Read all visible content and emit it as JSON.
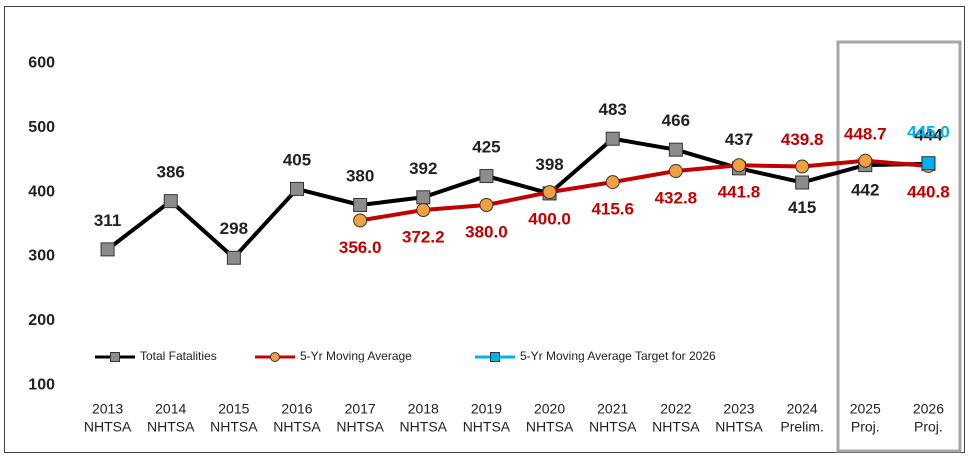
{
  "chart_data": {
    "type": "line",
    "categories": [
      [
        "2013",
        "NHTSA"
      ],
      [
        "2014",
        "NHTSA"
      ],
      [
        "2015",
        "NHTSA"
      ],
      [
        "2016",
        "NHTSA"
      ],
      [
        "2017",
        "NHTSA"
      ],
      [
        "2018",
        "NHTSA"
      ],
      [
        "2019",
        "NHTSA"
      ],
      [
        "2020",
        "NHTSA"
      ],
      [
        "2021",
        "NHTSA"
      ],
      [
        "2022",
        "NHTSA"
      ],
      [
        "2023",
        "NHTSA"
      ],
      [
        "2024",
        "Prelim."
      ],
      [
        "2025",
        "Proj."
      ],
      [
        "2026",
        "Proj."
      ]
    ],
    "series": [
      {
        "name": "Total Fatalities",
        "color": "#000000",
        "marker_color": "#8c8c8c",
        "marker": "square",
        "label_color": "#222222",
        "values": [
          311,
          386,
          298,
          405,
          380,
          392,
          425,
          398,
          483,
          466,
          437,
          415,
          442,
          444
        ]
      },
      {
        "name": "5-Yr Moving Average",
        "color": "#c00000",
        "marker_color": "#f0a040",
        "marker": "circle",
        "label_color": "#c00000",
        "values": [
          null,
          null,
          null,
          null,
          356,
          372.2,
          380,
          400,
          415.6,
          432.8,
          441.8,
          439.8,
          448.7,
          440.8
        ],
        "value_labels": [
          null,
          null,
          null,
          null,
          "356.0",
          "372.2",
          "380.0",
          "400.0",
          "415.6",
          "432.8",
          "441.8",
          "439.8",
          "448.7",
          "440.8"
        ]
      },
      {
        "name": "5-Yr Moving Average Target for 2026",
        "color": "#00b0f0",
        "marker_color": "#00b0f0",
        "marker": "square",
        "label_color": "#00b0f0",
        "values": [
          null,
          null,
          null,
          null,
          null,
          null,
          null,
          null,
          null,
          null,
          null,
          null,
          null,
          445
        ],
        "value_labels": [
          null,
          null,
          null,
          null,
          null,
          null,
          null,
          null,
          null,
          null,
          null,
          null,
          null,
          "445.0"
        ]
      }
    ],
    "ylim": [
      80,
      680
    ],
    "yticks": [
      100,
      200,
      300,
      400,
      500,
      600
    ],
    "grid": false,
    "legend": "bottom"
  }
}
